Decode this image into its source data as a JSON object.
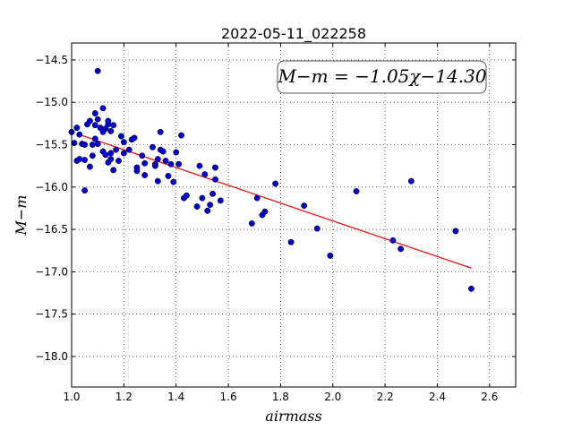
{
  "chart_data": {
    "type": "scatter",
    "title": "2022-05-11_022258",
    "xlabel": "airmass",
    "ylabel": "M−m",
    "xlim": [
      1.0,
      2.7
    ],
    "ylim": [
      -18.36,
      -14.3
    ],
    "y_inverted": true,
    "grid": true,
    "x_ticks": [
      1.0,
      1.2,
      1.4,
      1.6,
      1.8,
      2.0,
      2.2,
      2.4,
      2.6
    ],
    "x_tick_labels": [
      "1.0",
      "1.2",
      "1.4",
      "1.6",
      "1.8",
      "2.0",
      "2.2",
      "2.4",
      "2.6"
    ],
    "y_ticks": [
      -14.5,
      -15.0,
      -15.5,
      -16.0,
      -16.5,
      -17.0,
      -17.5,
      -18.0
    ],
    "y_tick_labels": [
      "−14.5",
      "−15.0",
      "−15.5",
      "−16.0",
      "−16.5",
      "−17.0",
      "−17.5",
      "−18.0"
    ],
    "annotation": "M−m = −1.05χ−14.30",
    "fit": {
      "slope": -1.05,
      "intercept": -14.3,
      "x_range": [
        1.02,
        2.53
      ],
      "color": "#ff0000"
    },
    "marker_color": "#0000cc",
    "series": [
      {
        "x": [
          1.0,
          1.01,
          1.02,
          1.02,
          1.03,
          1.03,
          1.04,
          1.05,
          1.05,
          1.05,
          1.06,
          1.07,
          1.07,
          1.08,
          1.08,
          1.09,
          1.09,
          1.09,
          1.1,
          1.1,
          1.1,
          1.11,
          1.12,
          1.12,
          1.12,
          1.13,
          1.13,
          1.14,
          1.14,
          1.14,
          1.15,
          1.15,
          1.15,
          1.16,
          1.16,
          1.17,
          1.18,
          1.19,
          1.2,
          1.2,
          1.22,
          1.23,
          1.24,
          1.25,
          1.25,
          1.27,
          1.28,
          1.28,
          1.31,
          1.32,
          1.32,
          1.33,
          1.33,
          1.34,
          1.34,
          1.35,
          1.36,
          1.37,
          1.38,
          1.39,
          1.4,
          1.41,
          1.42,
          1.43,
          1.44,
          1.48,
          1.49,
          1.5,
          1.51,
          1.52,
          1.53,
          1.54,
          1.55,
          1.55,
          1.57,
          1.69,
          1.71,
          1.73,
          1.74,
          1.78,
          1.84,
          1.89,
          1.94,
          1.99,
          2.09,
          2.23,
          2.26,
          2.3,
          2.47,
          2.53
        ],
        "y": [
          -15.35,
          -15.48,
          -15.69,
          -15.3,
          -15.38,
          -15.67,
          -15.49,
          -15.5,
          -15.68,
          -16.04,
          -15.26,
          -15.76,
          -15.22,
          -15.63,
          -15.5,
          -15.13,
          -15.27,
          -15.43,
          -15.49,
          -14.63,
          -15.2,
          -15.3,
          -15.58,
          -15.35,
          -15.07,
          -15.31,
          -15.62,
          -15.26,
          -15.22,
          -15.71,
          -15.6,
          -15.67,
          -15.34,
          -15.8,
          -15.27,
          -15.56,
          -15.69,
          -15.4,
          -15.6,
          -15.47,
          -15.56,
          -15.44,
          -15.42,
          -15.81,
          -15.77,
          -15.63,
          -15.72,
          -15.86,
          -15.53,
          -15.73,
          -15.75,
          -15.93,
          -15.67,
          -15.56,
          -15.35,
          -15.58,
          -15.69,
          -15.87,
          -15.73,
          -15.94,
          -15.59,
          -15.73,
          -15.39,
          -16.13,
          -16.1,
          -16.23,
          -15.75,
          -16.13,
          -15.85,
          -16.28,
          -16.21,
          -16.08,
          -15.77,
          -15.91,
          -16.16,
          -16.43,
          -16.13,
          -16.33,
          -16.29,
          -15.96,
          -16.65,
          -16.22,
          -16.49,
          -16.81,
          -16.05,
          -16.63,
          -16.73,
          -15.93,
          -16.52,
          -17.2
        ]
      }
    ]
  }
}
